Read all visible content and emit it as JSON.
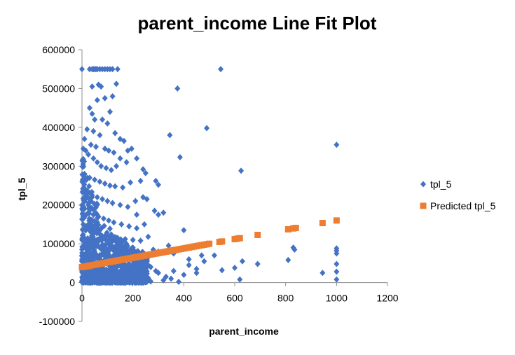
{
  "chart_data": {
    "type": "scatter",
    "title": "parent_income Line Fit  Plot",
    "xlabel": "parent_income",
    "ylabel": "tpl_5",
    "xlim": [
      0,
      1200
    ],
    "ylim": [
      -100000,
      600000
    ],
    "x_ticks": [
      "0",
      "200",
      "400",
      "600",
      "800",
      "1000",
      "1200"
    ],
    "y_ticks": [
      "-100000",
      "0",
      "100000",
      "200000",
      "300000",
      "400000",
      "500000",
      "600000"
    ],
    "grid": false,
    "legend_position": "right",
    "colors": {
      "observed": "#4472C4",
      "predicted": "#ED7D31"
    },
    "regression": {
      "intercept": 40000,
      "slope": 120
    },
    "series": [
      {
        "name": "tpl_5",
        "marker": "diamond",
        "points": [
          [
            0,
            550000
          ],
          [
            30,
            550000
          ],
          [
            40,
            550000
          ],
          [
            45,
            550000
          ],
          [
            50,
            550000
          ],
          [
            55,
            550000
          ],
          [
            60,
            550000
          ],
          [
            70,
            550000
          ],
          [
            80,
            550000
          ],
          [
            90,
            550000
          ],
          [
            100,
            550000
          ],
          [
            110,
            550000
          ],
          [
            120,
            550000
          ],
          [
            140,
            550000
          ],
          [
            545,
            550000
          ],
          [
            65,
            510000
          ],
          [
            75,
            505000
          ],
          [
            40,
            505000
          ],
          [
            135,
            512000
          ],
          [
            375,
            500000
          ],
          [
            30,
            450000
          ],
          [
            40,
            435000
          ],
          [
            50,
            420000
          ],
          [
            80,
            420000
          ],
          [
            100,
            410000
          ],
          [
            110,
            440000
          ],
          [
            120,
            480000
          ],
          [
            60,
            470000
          ],
          [
            90,
            475000
          ],
          [
            20,
            395000
          ],
          [
            45,
            390000
          ],
          [
            70,
            380000
          ],
          [
            130,
            385000
          ],
          [
            150,
            370000
          ],
          [
            165,
            365000
          ],
          [
            345,
            380000
          ],
          [
            490,
            398000
          ],
          [
            10,
            370000
          ],
          [
            35,
            355000
          ],
          [
            55,
            350000
          ],
          [
            90,
            345000
          ],
          [
            105,
            340000
          ],
          [
            125,
            335000
          ],
          [
            150,
            320000
          ],
          [
            180,
            340000
          ],
          [
            195,
            345000
          ],
          [
            385,
            323000
          ],
          [
            5,
            345000
          ],
          [
            15,
            340000
          ],
          [
            25,
            330000
          ],
          [
            45,
            320000
          ],
          [
            60,
            310000
          ],
          [
            75,
            300000
          ],
          [
            95,
            295000
          ],
          [
            115,
            290000
          ],
          [
            135,
            300000
          ],
          [
            175,
            310000
          ],
          [
            215,
            320000
          ],
          [
            240,
            292000
          ],
          [
            625,
            288000
          ],
          [
            1000,
            355000
          ],
          [
            10,
            280000
          ],
          [
            30,
            270000
          ],
          [
            50,
            265000
          ],
          [
            70,
            260000
          ],
          [
            90,
            255000
          ],
          [
            110,
            250000
          ],
          [
            130,
            248000
          ],
          [
            160,
            245000
          ],
          [
            190,
            258000
          ],
          [
            230,
            262000
          ],
          [
            250,
            282000
          ],
          [
            290,
            262000
          ],
          [
            300,
            252000
          ],
          [
            5,
            240000
          ],
          [
            20,
            230000
          ],
          [
            40,
            225000
          ],
          [
            60,
            220000
          ],
          [
            80,
            215000
          ],
          [
            100,
            210000
          ],
          [
            120,
            205000
          ],
          [
            150,
            200000
          ],
          [
            180,
            195000
          ],
          [
            210,
            210000
          ],
          [
            240,
            220000
          ],
          [
            255,
            215000
          ],
          [
            285,
            185000
          ],
          [
            10,
            190000
          ],
          [
            25,
            180000
          ],
          [
            45,
            175000
          ],
          [
            65,
            170000
          ],
          [
            85,
            165000
          ],
          [
            105,
            160000
          ],
          [
            125,
            155000
          ],
          [
            155,
            150000
          ],
          [
            185,
            145000
          ],
          [
            215,
            140000
          ],
          [
            245,
            150000
          ],
          [
            300,
            175000
          ],
          [
            320,
            180000
          ],
          [
            215,
            175000
          ],
          [
            5,
            150000
          ],
          [
            15,
            140000
          ],
          [
            30,
            135000
          ],
          [
            50,
            130000
          ],
          [
            70,
            125000
          ],
          [
            90,
            120000
          ],
          [
            110,
            118000
          ],
          [
            140,
            115000
          ],
          [
            170,
            112000
          ],
          [
            200,
            110000
          ],
          [
            230,
            108000
          ],
          [
            260,
            118000
          ],
          [
            400,
            135000
          ],
          [
            0,
            110000
          ],
          [
            10,
            105000
          ],
          [
            20,
            100000
          ],
          [
            35,
            98000
          ],
          [
            50,
            95000
          ],
          [
            65,
            93000
          ],
          [
            80,
            90000
          ],
          [
            95,
            88000
          ],
          [
            110,
            85000
          ],
          [
            125,
            82000
          ],
          [
            145,
            80000
          ],
          [
            165,
            78000
          ],
          [
            190,
            76000
          ],
          [
            220,
            74000
          ],
          [
            250,
            72000
          ],
          [
            280,
            85000
          ],
          [
            300,
            80000
          ],
          [
            340,
            95000
          ],
          [
            360,
            75000
          ],
          [
            420,
            60000
          ],
          [
            470,
            70000
          ],
          [
            520,
            70000
          ],
          [
            630,
            55000
          ],
          [
            830,
            90000
          ],
          [
            835,
            85000
          ],
          [
            1000,
            88000
          ],
          [
            1000,
            82000
          ],
          [
            1000,
            75000
          ],
          [
            0,
            70000
          ],
          [
            8,
            65000
          ],
          [
            16,
            60000
          ],
          [
            25,
            55000
          ],
          [
            35,
            50000
          ],
          [
            45,
            45000
          ],
          [
            55,
            40000
          ],
          [
            65,
            38000
          ],
          [
            75,
            35000
          ],
          [
            85,
            32000
          ],
          [
            95,
            30000
          ],
          [
            105,
            28000
          ],
          [
            115,
            25000
          ],
          [
            130,
            22000
          ],
          [
            150,
            20000
          ],
          [
            170,
            18000
          ],
          [
            200,
            15000
          ],
          [
            230,
            12000
          ],
          [
            260,
            10000
          ],
          [
            300,
            25000
          ],
          [
            330,
            15000
          ],
          [
            360,
            30000
          ],
          [
            400,
            20000
          ],
          [
            450,
            35000
          ],
          [
            480,
            55000
          ],
          [
            550,
            32000
          ],
          [
            600,
            38000
          ],
          [
            690,
            48000
          ],
          [
            810,
            58000
          ],
          [
            945,
            25000
          ],
          [
            1000,
            28000
          ],
          [
            1000,
            48000
          ],
          [
            1000,
            8000
          ],
          [
            620,
            8000
          ],
          [
            350,
            10000
          ],
          [
            0,
            30000
          ],
          [
            5,
            20000
          ],
          [
            12,
            15000
          ],
          [
            20,
            10000
          ],
          [
            30,
            5000
          ],
          [
            40,
            2000
          ],
          [
            50,
            8000
          ],
          [
            60,
            4000
          ],
          [
            70,
            12000
          ],
          [
            80,
            6000
          ],
          [
            90,
            3000
          ],
          [
            100,
            10000
          ],
          [
            110,
            5000
          ],
          [
            120,
            2000
          ],
          [
            140,
            6000
          ],
          [
            160,
            3000
          ],
          [
            180,
            8000
          ],
          [
            200,
            4000
          ],
          [
            220,
            2000
          ],
          [
            240,
            5000
          ],
          [
            270,
            3000
          ],
          [
            320,
            6000
          ],
          [
            380,
            2000
          ],
          [
            420,
            45000
          ],
          [
            450,
            25000
          ],
          [
            180,
            60000
          ],
          [
            200,
            90000
          ],
          [
            240,
            45000
          ],
          [
            270,
            40000
          ],
          [
            290,
            30000
          ]
        ]
      },
      {
        "name": "Predicted tpl_5",
        "marker": "square",
        "x": [
          0,
          10,
          20,
          30,
          40,
          50,
          60,
          70,
          80,
          90,
          100,
          110,
          120,
          130,
          140,
          150,
          160,
          170,
          180,
          190,
          200,
          210,
          220,
          230,
          240,
          250,
          260,
          270,
          280,
          290,
          300,
          310,
          320,
          330,
          340,
          350,
          360,
          370,
          380,
          390,
          400,
          410,
          420,
          430,
          440,
          450,
          460,
          470,
          480,
          490,
          500,
          540,
          550,
          600,
          610,
          620,
          690,
          810,
          830,
          840,
          945,
          1000
        ],
        "values": [
          40000,
          41200,
          42400,
          43600,
          44800,
          46000,
          47200,
          48400,
          49600,
          50800,
          52000,
          53200,
          54400,
          55600,
          56800,
          58000,
          59200,
          60400,
          61600,
          62800,
          64000,
          65200,
          66400,
          67600,
          68800,
          70000,
          71200,
          72400,
          73600,
          74800,
          76000,
          77200,
          78400,
          79600,
          80800,
          82000,
          83200,
          84400,
          85600,
          86800,
          88000,
          89200,
          90400,
          91600,
          92800,
          94000,
          95200,
          96400,
          97600,
          98800,
          100000,
          104800,
          106000,
          112000,
          113200,
          114400,
          122800,
          137200,
          139600,
          140800,
          153400,
          160000
        ]
      }
    ]
  }
}
